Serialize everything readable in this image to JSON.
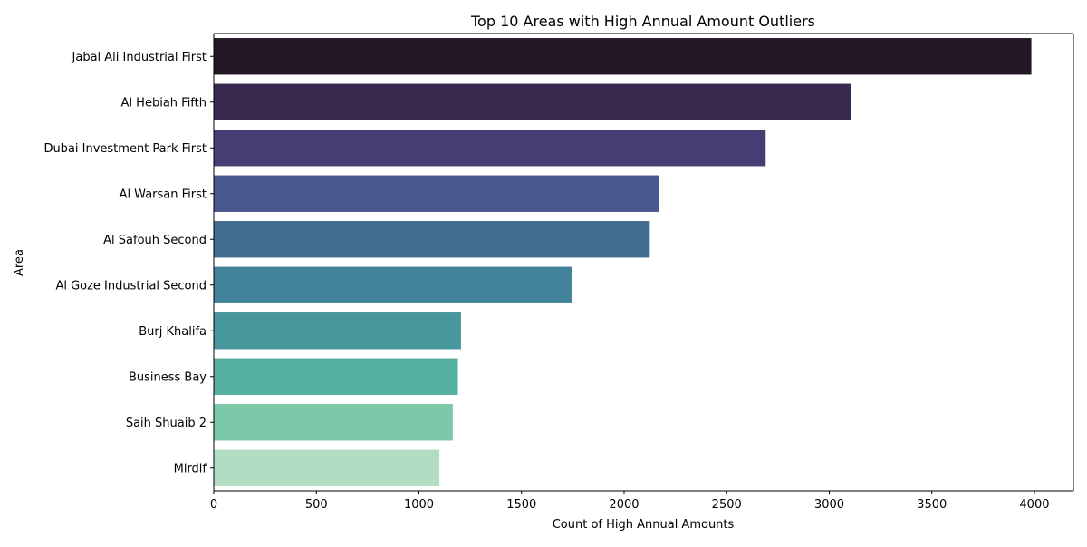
{
  "chart_data": {
    "type": "bar",
    "orientation": "horizontal",
    "title": "Top 10 Areas with High Annual Amount Outliers",
    "xlabel": "Count of High Annual Amounts",
    "ylabel": "Area",
    "categories": [
      "Jabal Ali Industrial First",
      "Al Hebiah Fifth",
      "Dubai Investment Park First",
      "Al Warsan First",
      "Al Safouh Second",
      "Al Goze Industrial Second",
      "Burj Khalifa",
      "Business Bay",
      "Saih Shuaib 2",
      "Mirdif"
    ],
    "values": [
      3985,
      3105,
      2690,
      2170,
      2125,
      1745,
      1205,
      1190,
      1165,
      1100
    ],
    "colors": [
      "#231726",
      "#382a4f",
      "#463d75",
      "#4a5890",
      "#436c92",
      "#43839a",
      "#47979c",
      "#55b0a2",
      "#7cc9a9",
      "#b3ddc2"
    ],
    "xlim": [
      0,
      4190
    ],
    "xticks": [
      0,
      500,
      1000,
      1500,
      2000,
      2500,
      3000,
      3500,
      4000
    ],
    "xtick_labels": [
      "0",
      "500",
      "1000",
      "1500",
      "2000",
      "2500",
      "3000",
      "3500",
      "4000"
    ],
    "grid": false,
    "legend": "none"
  }
}
